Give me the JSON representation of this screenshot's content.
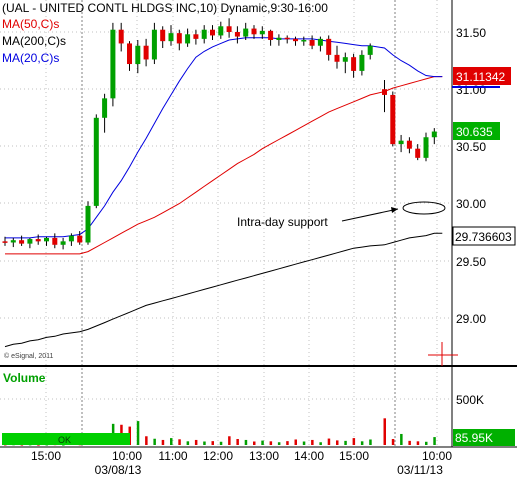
{
  "chart_data": {
    "type": "candlestick",
    "title": "(UAL - UNITED CONTL HLDGS INC,10) Dynamic,9:30-16:00",
    "copyright": "© eSignal, 2011",
    "price_ylim": [
      28.6,
      31.75
    ],
    "price_ticks": [
      "31.50",
      "31.00",
      "30.50",
      "30.00",
      "29.50",
      "29.00"
    ],
    "volume_tick": "500K",
    "x_ticks": [
      "15:00",
      "10:00",
      "11:00",
      "12:00",
      "13:00",
      "14:00",
      "15:00",
      "10:00"
    ],
    "date_labels": [
      "03/08/13",
      "03/11/13"
    ],
    "indicators": [
      {
        "name": "MA(50,C)s",
        "color": "#e00000"
      },
      {
        "name": "MA(200,C)s",
        "color": "#000000"
      },
      {
        "name": "MA(20,C)s",
        "color": "#0000e0"
      }
    ],
    "price_badges": [
      {
        "text": "31.11342",
        "value": 31.11342,
        "bg": "#e00000",
        "fg": "#ffffff"
      },
      {
        "text": "30.635",
        "value": 30.635,
        "bg": "#00b000",
        "fg": "#ffffff"
      },
      {
        "text": "29.736603",
        "value": 29.736603,
        "bg": "#ffffff",
        "fg": "#000000"
      }
    ],
    "volume_label": "Volume",
    "volume_badge": "85.95K",
    "status_label": "OK",
    "annotation": "Intra-day support",
    "candles": [
      [
        29.67,
        29.71,
        29.63,
        29.66
      ],
      [
        29.66,
        29.7,
        29.62,
        29.68
      ],
      [
        29.68,
        29.72,
        29.63,
        29.65
      ],
      [
        29.65,
        29.7,
        29.61,
        29.69
      ],
      [
        29.69,
        29.73,
        29.64,
        29.67
      ],
      [
        29.67,
        29.71,
        29.63,
        29.7
      ],
      [
        29.7,
        29.74,
        29.61,
        29.64
      ],
      [
        29.64,
        29.7,
        29.6,
        29.67
      ],
      [
        29.67,
        29.74,
        29.63,
        29.72
      ],
      [
        29.72,
        29.76,
        29.64,
        29.66
      ],
      [
        29.66,
        30.02,
        29.64,
        29.98
      ],
      [
        29.98,
        30.78,
        29.96,
        30.75
      ],
      [
        30.75,
        30.96,
        30.62,
        30.92
      ],
      [
        30.92,
        31.58,
        30.85,
        31.52
      ],
      [
        31.52,
        31.58,
        31.33,
        31.4
      ],
      [
        31.4,
        31.42,
        31.16,
        31.22
      ],
      [
        31.22,
        31.43,
        31.14,
        31.38
      ],
      [
        31.38,
        31.44,
        31.2,
        31.26
      ],
      [
        31.26,
        31.58,
        31.22,
        31.52
      ],
      [
        31.52,
        31.55,
        31.36,
        31.42
      ],
      [
        31.42,
        31.56,
        31.38,
        31.49
      ],
      [
        31.49,
        31.52,
        31.34,
        31.4
      ],
      [
        31.4,
        31.53,
        31.37,
        31.48
      ],
      [
        31.48,
        31.52,
        31.39,
        31.44
      ],
      [
        31.44,
        31.56,
        31.4,
        31.52
      ],
      [
        31.52,
        31.56,
        31.43,
        31.47
      ],
      [
        31.47,
        31.59,
        31.44,
        31.55
      ],
      [
        31.55,
        31.62,
        31.45,
        31.5
      ],
      [
        31.5,
        31.55,
        31.4,
        31.46
      ],
      [
        31.46,
        31.58,
        31.43,
        31.53
      ],
      [
        31.53,
        31.56,
        31.44,
        31.48
      ],
      [
        31.48,
        31.55,
        31.44,
        31.51
      ],
      [
        31.51,
        31.52,
        31.38,
        31.43
      ],
      [
        31.43,
        31.48,
        31.38,
        31.45
      ],
      [
        31.45,
        31.47,
        31.4,
        31.44
      ],
      [
        31.44,
        31.46,
        31.38,
        31.42
      ],
      [
        31.42,
        31.46,
        31.38,
        31.43
      ],
      [
        31.43,
        31.47,
        31.35,
        31.38
      ],
      [
        31.38,
        31.46,
        31.33,
        31.44
      ],
      [
        31.44,
        31.47,
        31.25,
        31.3
      ],
      [
        31.3,
        31.38,
        31.18,
        31.24
      ],
      [
        31.24,
        31.32,
        31.14,
        31.28
      ],
      [
        31.28,
        31.31,
        31.1,
        31.16
      ],
      [
        31.16,
        31.34,
        31.12,
        31.3
      ],
      [
        31.3,
        31.4,
        31.26,
        31.38
      ],
      [
        31.0,
        31.08,
        30.8,
        30.95
      ],
      [
        30.95,
        30.98,
        30.5,
        30.52
      ],
      [
        30.52,
        30.6,
        30.45,
        30.55
      ],
      [
        30.55,
        30.58,
        30.44,
        30.48
      ],
      [
        30.48,
        30.52,
        30.38,
        30.4
      ],
      [
        30.4,
        30.62,
        30.37,
        30.58
      ],
      [
        30.58,
        30.66,
        30.52,
        30.63
      ]
    ],
    "volume": [
      6,
      8,
      5,
      7,
      4,
      6,
      9,
      5,
      11,
      8,
      12,
      110,
      45,
      230,
      220,
      200,
      260,
      95,
      68,
      55,
      75,
      62,
      40,
      55,
      38,
      42,
      35,
      95,
      65,
      55,
      38,
      48,
      40,
      30,
      42,
      60,
      38,
      55,
      30,
      70,
      50,
      45,
      75,
      40,
      60,
      290,
      65,
      120,
      45,
      40,
      35,
      86
    ],
    "ma20": [
      29.7,
      29.7,
      29.7,
      29.7,
      29.71,
      29.71,
      29.71,
      29.71,
      29.72,
      29.73,
      29.78,
      29.88,
      29.98,
      30.1,
      30.2,
      30.32,
      30.45,
      30.57,
      30.7,
      30.83,
      30.95,
      31.07,
      31.18,
      31.28,
      31.33,
      31.37,
      31.4,
      31.43,
      31.44,
      31.45,
      31.45,
      31.45,
      31.45,
      31.44,
      31.44,
      31.44,
      31.44,
      31.44,
      31.43,
      31.42,
      31.41,
      31.4,
      31.39,
      31.38,
      31.38,
      31.36,
      31.3,
      31.25,
      31.21,
      31.16,
      31.12,
      31.11
    ],
    "ma50": [
      29.56,
      29.56,
      29.56,
      29.56,
      29.56,
      29.56,
      29.56,
      29.56,
      29.56,
      29.56,
      29.58,
      29.62,
      29.66,
      29.7,
      29.74,
      29.78,
      29.82,
      29.85,
      29.88,
      29.92,
      29.96,
      30.0,
      30.05,
      30.1,
      30.15,
      30.2,
      30.25,
      30.3,
      30.35,
      30.39,
      30.43,
      30.48,
      30.52,
      30.56,
      30.6,
      30.64,
      30.68,
      30.72,
      30.76,
      30.8,
      30.83,
      30.86,
      30.89,
      30.92,
      30.95,
      30.98,
      31.01,
      31.03,
      31.05,
      31.07,
      31.09,
      31.11
    ],
    "ma200": [
      28.75,
      28.77,
      28.78,
      28.8,
      28.81,
      28.83,
      28.84,
      28.86,
      28.87,
      28.88,
      28.9,
      28.93,
      28.96,
      28.99,
      29.02,
      29.05,
      29.08,
      29.11,
      29.13,
      29.15,
      29.17,
      29.19,
      29.21,
      29.23,
      29.25,
      29.27,
      29.29,
      29.31,
      29.33,
      29.35,
      29.37,
      29.39,
      29.41,
      29.43,
      29.45,
      29.47,
      29.49,
      29.51,
      29.53,
      29.55,
      29.57,
      29.59,
      29.61,
      29.62,
      29.63,
      29.64,
      29.66,
      29.68,
      29.7,
      29.71,
      29.72,
      29.74
    ],
    "colors": {
      "up": "#00a000",
      "down": "#e00000",
      "grid": "#c0c0c0",
      "volume_up": "#00a000",
      "volume_down": "#e00000",
      "ok_bar": "#00d000"
    }
  }
}
